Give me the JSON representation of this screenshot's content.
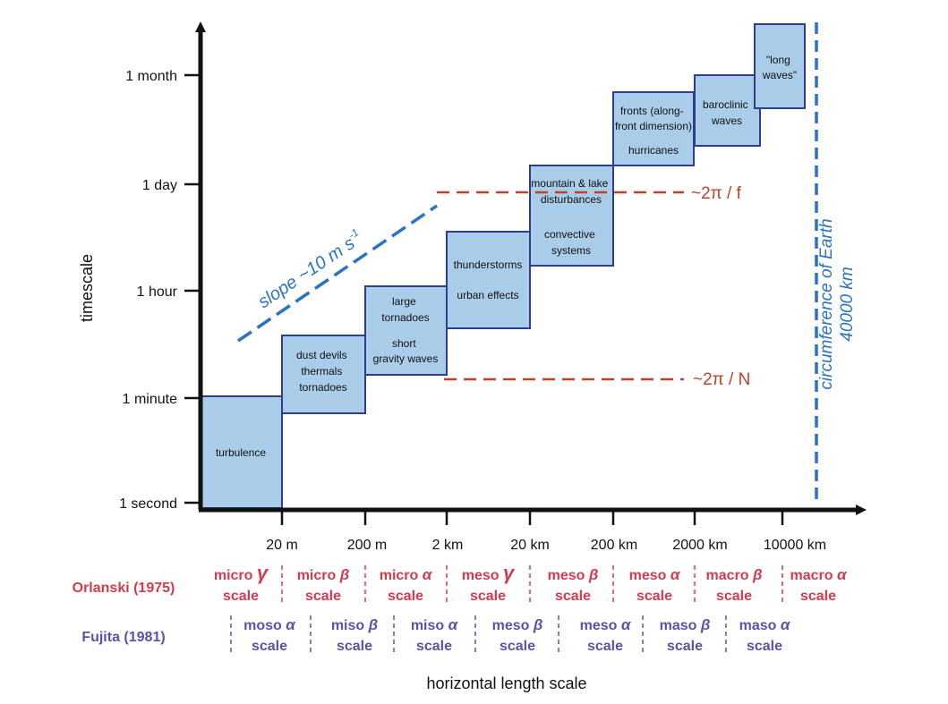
{
  "axes": {
    "y_label": "timescale",
    "x_label": "horizontal length scale",
    "y_ticks": [
      "1 second",
      "1 minute",
      "1 hour",
      "1 day",
      "1 month"
    ],
    "x_ticks": [
      "20 m",
      "200 m",
      "2 km",
      "20 km",
      "200 km",
      "2000 km",
      "10000 km"
    ]
  },
  "phenomena": [
    {
      "id": "turbulence",
      "lines": [
        "turbulence"
      ]
    },
    {
      "id": "dust-devils",
      "lines": [
        "dust devils",
        "thermals",
        "tornadoes"
      ]
    },
    {
      "id": "large-tornadoes",
      "lines": [
        "large",
        "tornadoes"
      ]
    },
    {
      "id": "short-gravity-waves",
      "lines": [
        "short",
        "gravity waves"
      ]
    },
    {
      "id": "thunderstorms",
      "lines": [
        "thunderstorms"
      ]
    },
    {
      "id": "urban-effects",
      "lines": [
        "urban effects"
      ]
    },
    {
      "id": "mountain-lake",
      "lines": [
        "mountain & lake",
        "disturbances"
      ]
    },
    {
      "id": "convective-systems",
      "lines": [
        "convective",
        "systems"
      ]
    },
    {
      "id": "fronts",
      "lines": [
        "fronts (along-",
        "front dimension)"
      ]
    },
    {
      "id": "hurricanes",
      "lines": [
        "hurricanes"
      ]
    },
    {
      "id": "baroclinic-waves",
      "lines": [
        "baroclinic",
        "waves"
      ]
    },
    {
      "id": "long-waves",
      "lines": [
        "\"long",
        "waves\""
      ]
    }
  ],
  "annotations": {
    "slope": "slope ~10 m s",
    "slope_sup": "-1",
    "inertial": "~2π / f",
    "buoyancy": "~2π / N",
    "earth_line1": "circumference of Earth",
    "earth_line2": "40000 km"
  },
  "orlanski": {
    "label": "Orlanski (1975)",
    "cells": [
      {
        "prefix": "micro",
        "greek": "γ",
        "suffix": "scale"
      },
      {
        "prefix": "micro",
        "greek": "β",
        "suffix": "scale"
      },
      {
        "prefix": "micro",
        "greek": "α",
        "suffix": "scale"
      },
      {
        "prefix": "meso",
        "greek": "γ",
        "suffix": "scale"
      },
      {
        "prefix": "meso",
        "greek": "β",
        "suffix": "scale"
      },
      {
        "prefix": "meso",
        "greek": "α",
        "suffix": "scale"
      },
      {
        "prefix": "macro",
        "greek": "β",
        "suffix": "scale"
      },
      {
        "prefix": "macro",
        "greek": "α",
        "suffix": "scale"
      }
    ]
  },
  "fujita": {
    "label": "Fujita (1981)",
    "cells": [
      {
        "prefix": "moso",
        "greek": "α",
        "suffix": "scale"
      },
      {
        "prefix": "miso",
        "greek": "β",
        "suffix": "scale"
      },
      {
        "prefix": "miso",
        "greek": "α",
        "suffix": "scale"
      },
      {
        "prefix": "meso",
        "greek": "β",
        "suffix": "scale"
      },
      {
        "prefix": "meso",
        "greek": "α",
        "suffix": "scale"
      },
      {
        "prefix": "maso",
        "greek": "β",
        "suffix": "scale"
      },
      {
        "prefix": "maso",
        "greek": "α",
        "suffix": "scale"
      }
    ]
  },
  "colors": {
    "box_fill": "#a9cde9",
    "box_stroke": "#2f3d8e",
    "slope_line": "#2b72c4",
    "dashed_red": "#b5452b",
    "earth_line": "#2b72c4",
    "orlanski": "#d53a4e",
    "fujita": "#5b52a8",
    "axis": "#111111"
  }
}
